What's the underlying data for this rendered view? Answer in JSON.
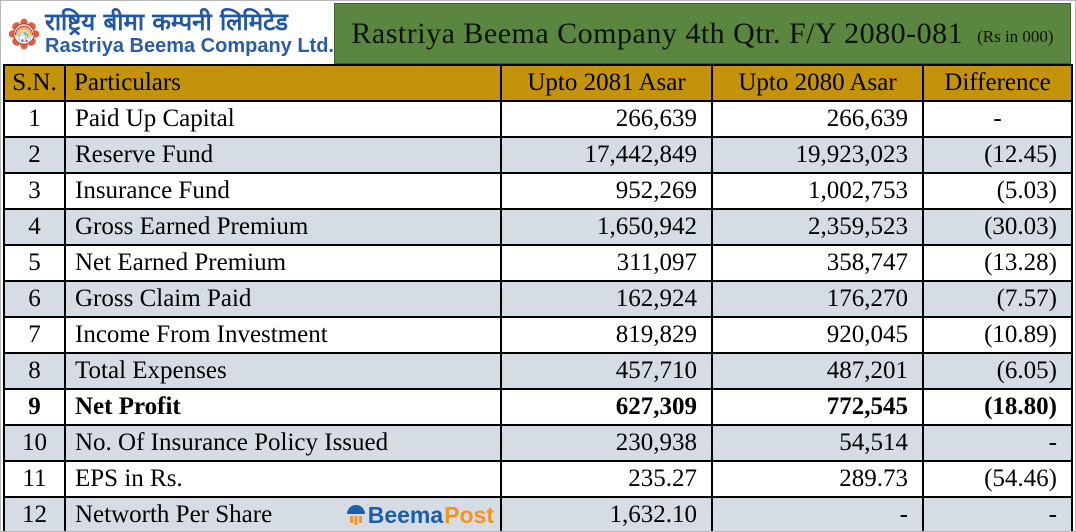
{
  "logo": {
    "nepali_name": "राष्ट्रिय बीमा कम्पनी लिमिटेड",
    "english_name": "Rastriya Beema Company Ltd."
  },
  "banner": {
    "title": "Rastriya Beema Company 4th Qtr. F/Y 2080-081",
    "unit_note": "(Rs in 000)"
  },
  "table": {
    "columns": [
      "S.N.",
      "Particulars",
      "Upto 2081 Asar",
      "Upto 2080 Asar",
      "Difference"
    ],
    "rows": [
      {
        "sn": "1",
        "particulars": "Paid Up Capital",
        "upto_2081": "266,639",
        "upto_2080": "266,639",
        "difference": "-",
        "dash_center": true
      },
      {
        "sn": "2",
        "particulars": "Reserve Fund",
        "upto_2081": "17,442,849",
        "upto_2080": "19,923,023",
        "difference": "(12.45)"
      },
      {
        "sn": "3",
        "particulars": "Insurance Fund",
        "upto_2081": "952,269",
        "upto_2080": "1,002,753",
        "difference": "(5.03)"
      },
      {
        "sn": "4",
        "particulars": "Gross Earned Premium",
        "upto_2081": "1,650,942",
        "upto_2080": "2,359,523",
        "difference": "(30.03)"
      },
      {
        "sn": "5",
        "particulars": "Net Earned Premium",
        "upto_2081": "311,097",
        "upto_2080": "358,747",
        "difference": "(13.28)"
      },
      {
        "sn": "6",
        "particulars": "Gross Claim Paid",
        "upto_2081": "162,924",
        "upto_2080": "176,270",
        "difference": "(7.57)"
      },
      {
        "sn": "7",
        "particulars": "Income From Investment",
        "upto_2081": "819,829",
        "upto_2080": "920,045",
        "difference": "(10.89)"
      },
      {
        "sn": "8",
        "particulars": "Total Expenses",
        "upto_2081": "457,710",
        "upto_2080": "487,201",
        "difference": "(6.05)"
      },
      {
        "sn": "9",
        "particulars": "Net Profit",
        "upto_2081": "627,309",
        "upto_2080": "772,545",
        "difference": "(18.80)",
        "bold": true
      },
      {
        "sn": "10",
        "particulars": "No. Of Insurance Policy Issued",
        "upto_2081": "230,938",
        "upto_2080": "54,514",
        "difference": "-"
      },
      {
        "sn": "11",
        "particulars": "EPS in Rs.",
        "upto_2081": "235.27",
        "upto_2080": "289.73",
        "difference": "(54.46)"
      },
      {
        "sn": "12",
        "particulars": "Networth Per Share",
        "upto_2081": "1,632.10",
        "upto_2080": "-",
        "difference": "-",
        "watermark": true
      }
    ]
  },
  "watermark": {
    "beema": "Beema",
    "post": "Post"
  },
  "colors": {
    "banner_green": "#5a8640",
    "header_gold": "#c3930b",
    "alt_row": "#d6dce4",
    "brand_blue": "#2257a5",
    "watermark_blue": "#1c5fa8",
    "watermark_orange": "#f7941d"
  }
}
